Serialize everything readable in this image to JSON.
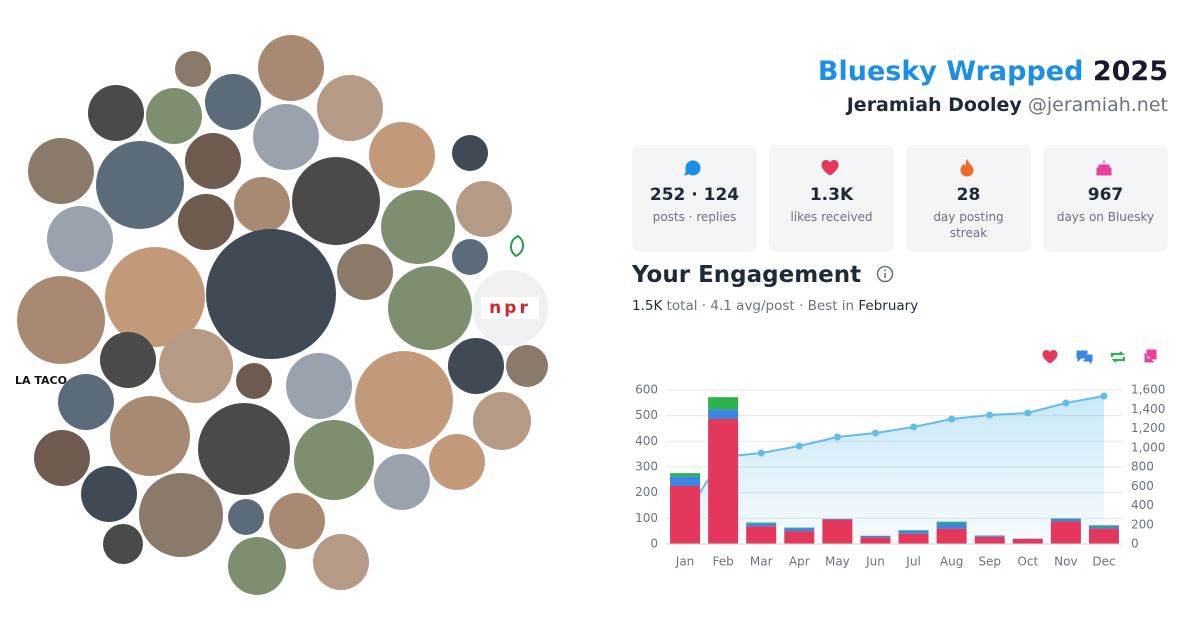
{
  "header": {
    "title": "Bluesky Wrapped",
    "year": "2025",
    "name": "Jeramiah Dooley",
    "handle": "@jeramiah.net"
  },
  "stats": [
    {
      "value": "252 · 124",
      "label": "posts · replies"
    },
    {
      "value": "1.3K",
      "label": "likes received"
    },
    {
      "value": "28",
      "label": "day posting streak"
    },
    {
      "value": "967",
      "label": "days on Bluesky"
    }
  ],
  "engagement": {
    "title": "Your Engagement",
    "total": "1.5K",
    "total_label": "total",
    "separator": "·",
    "avg": "4.1",
    "avg_label": "avg/post",
    "best_label": "Best in",
    "best": "February"
  },
  "avatars": [
    {
      "label": "npr"
    },
    {
      "label": "LA TACO"
    }
  ],
  "chart_data": {
    "type": "bar",
    "stacked": true,
    "grid": true,
    "categories": [
      "Jan",
      "Feb",
      "Mar",
      "Apr",
      "May",
      "Jun",
      "Jul",
      "Aug",
      "Sep",
      "Oct",
      "Nov",
      "Dec"
    ],
    "series": [
      {
        "color": "#e3385b",
        "values": [
          226,
          487,
          69,
          50,
          95,
          26,
          40,
          60,
          28,
          20,
          88,
          60
        ]
      },
      {
        "color": "#3a86e0",
        "values": [
          38,
          38,
          12,
          12,
          3,
          6,
          12,
          22,
          5,
          1,
          10,
          8
        ]
      },
      {
        "color": "#2bb34a",
        "values": [
          12,
          47,
          3,
          2,
          0,
          0,
          2,
          5,
          0,
          0,
          2,
          5
        ]
      },
      {
        "color": "#e8409c",
        "values": [
          0,
          0,
          0,
          0,
          0,
          0,
          0,
          0,
          0,
          0,
          0,
          0
        ]
      },
      {
        "type": "line",
        "axis": "y2",
        "color": "#62bde9",
        "values": [
          300,
          904,
          945,
          1018,
          1112,
          1153,
          1216,
          1299,
          1340,
          1361,
          1465,
          1538
        ]
      }
    ],
    "ylim": [
      0,
      600
    ],
    "yticks": [
      0,
      100,
      200,
      300,
      400,
      500,
      600
    ],
    "y2lim": [
      0,
      1600
    ],
    "y2ticks": [
      0,
      200,
      400,
      600,
      800,
      {
        "value": 1000,
        "label": "1,000"
      },
      {
        "value": 1200,
        "label": "1,200"
      },
      {
        "value": 1400,
        "label": "1,400"
      },
      {
        "value": 1600,
        "label": "1,600"
      }
    ]
  }
}
